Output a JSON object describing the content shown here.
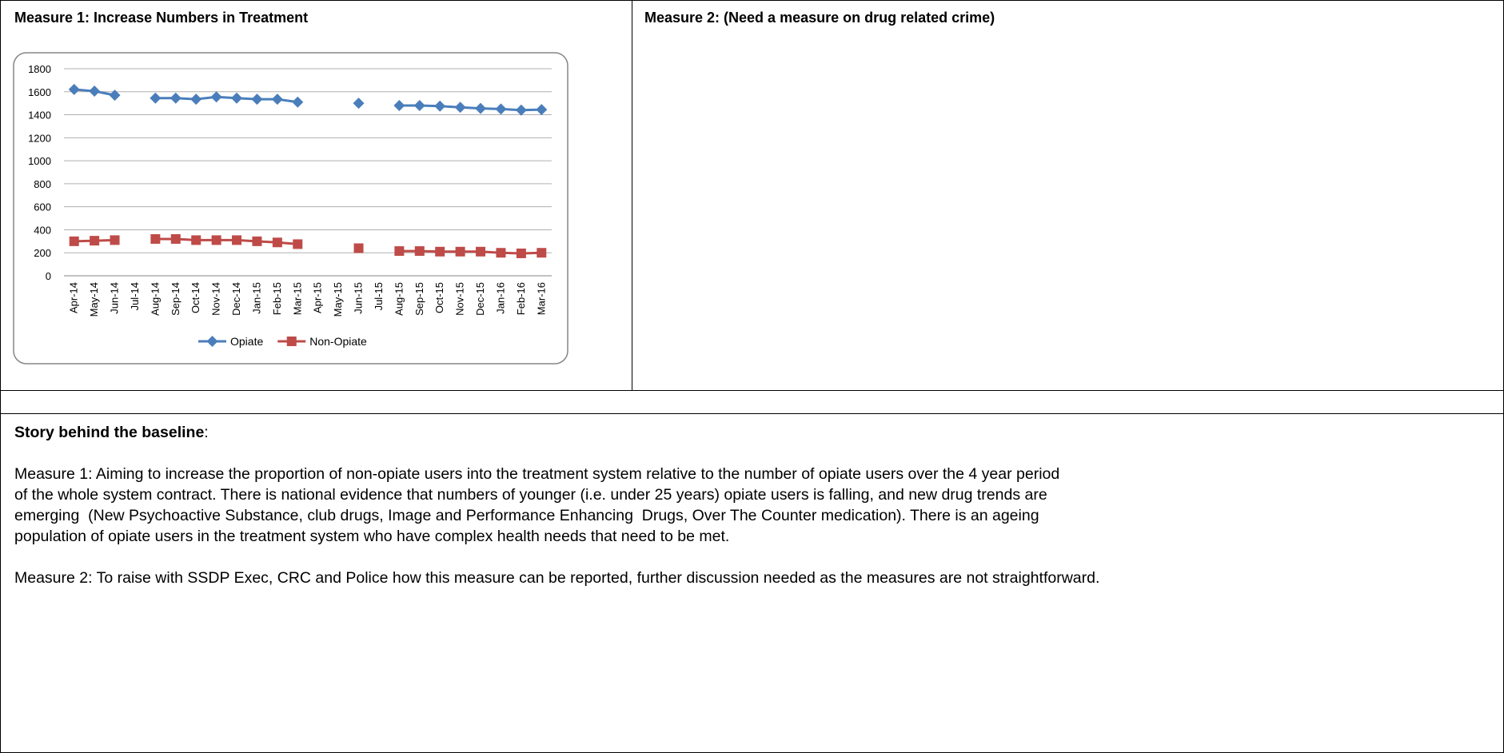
{
  "cells": {
    "measure1_title": "Measure 1: Increase Numbers in Treatment",
    "measure2_title": "Measure 2: (Need a measure on drug related crime)"
  },
  "chart_data": {
    "type": "line",
    "categories": [
      "Apr-14",
      "May-14",
      "Jun-14",
      "Jul-14",
      "Aug-14",
      "Sep-14",
      "Oct-14",
      "Nov-14",
      "Dec-14",
      "Jan-15",
      "Feb-15",
      "Mar-15",
      "Apr-15",
      "May-15",
      "Jun-15",
      "Jul-15",
      "Aug-15",
      "Sep-15",
      "Oct-15",
      "Nov-15",
      "Dec-15",
      "Jan-16",
      "Feb-16",
      "Mar-16"
    ],
    "series": [
      {
        "name": "Opiate",
        "color": "#4a7ebb",
        "marker": "diamond",
        "values": [
          1620,
          1605,
          1570,
          null,
          1545,
          1545,
          1535,
          1555,
          1545,
          1535,
          1535,
          1510,
          null,
          null,
          1500,
          null,
          1480,
          1480,
          1475,
          1465,
          1455,
          1450,
          1440,
          1445
        ]
      },
      {
        "name": "Non-Opiate",
        "color": "#be4b48",
        "marker": "square",
        "values": [
          300,
          305,
          310,
          null,
          320,
          320,
          310,
          310,
          310,
          300,
          290,
          275,
          null,
          null,
          240,
          null,
          215,
          215,
          210,
          210,
          210,
          200,
          195,
          200
        ]
      }
    ],
    "ylim": [
      0,
      1800
    ],
    "yticks": [
      0,
      200,
      400,
      600,
      800,
      1000,
      1200,
      1400,
      1600,
      1800
    ],
    "grid": true,
    "legend": "bottom"
  },
  "story": {
    "heading": "Story behind the baseline",
    "heading_suffix": ":",
    "paragraphs": [
      [
        "Measure 1: Aiming to increase the proportion of non-opiate users into the treatment system relative to the number of opiate users over the 4 year period",
        "of the whole system contract. There is national evidence that numbers of younger (i.e. under 25 years) opiate users is falling, and new drug trends are",
        "emerging  (New Psychoactive Substance, club drugs, Image and Performance Enhancing  Drugs, Over The Counter medication). There is an ageing",
        "population of opiate users in the treatment system who have complex health needs that need to be met."
      ],
      [
        "Measure 2: To raise with SSDP Exec, CRC and Police how this measure can be reported, further discussion needed as the measures are not straightforward."
      ]
    ]
  }
}
